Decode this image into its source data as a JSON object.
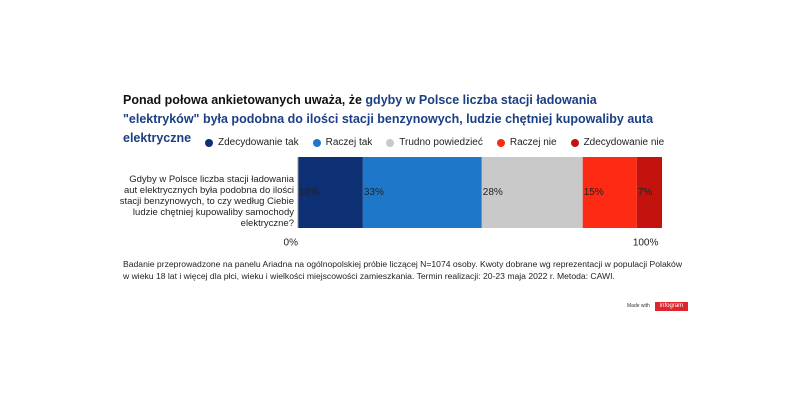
{
  "chart_data": {
    "type": "stacked_bar_horizontal",
    "title": "Ponad połowa ankietowanych uważa, że ",
    "title_highlight": "gdyby w Polsce liczba stacji ładowania \"elektryków\" była podobna do ilości stacji benzynowych, ludzie chętniej kupowaliby auta elektryczne",
    "categories": [
      "Gdyby w Polsce liczba stacji ładowania aut elektrycznych była podobna do ilości stacji benzynowych, to czy według Ciebie ludzie chętniej kupowaliby samochody elektryczne?"
    ],
    "series": [
      {
        "name": "Zdecydowanie tak",
        "color": "#0d2f74",
        "values": [
          18
        ],
        "value_labels": [
          "18%"
        ]
      },
      {
        "name": "Raczej tak",
        "color": "#1f77c9",
        "values": [
          33
        ],
        "value_labels": [
          "33%"
        ]
      },
      {
        "name": "Trudno powiedzieć",
        "color": "#c9c9c9",
        "values": [
          28
        ],
        "value_labels": [
          "28%"
        ]
      },
      {
        "name": "Raczej nie",
        "color": "#fd2b13",
        "values": [
          15
        ],
        "value_labels": [
          "15%"
        ]
      },
      {
        "name": "Zdecydowanie nie",
        "color": "#c4130f",
        "values": [
          7
        ],
        "value_labels": [
          "7%"
        ]
      }
    ],
    "xlim": [
      0,
      101
    ],
    "xticks": [
      {
        "value": 0,
        "label": "0%"
      },
      {
        "value": 100,
        "label": "100%"
      }
    ],
    "legend": "top",
    "footnote": "Badanie przeprowadzone na panelu Ariadna na ogólnopolskiej próbie liczącej N=1074 osoby. Kwoty dobrane wg reprezentacji w populacji Polaków w wieku 18 lat i więcej dla płci, wieku i wielkości miejscowości zamieszkania. Termin realizacji:  20-23 maja  2022 r. Metoda: CAWI.",
    "branding": {
      "made_with": "Made with",
      "logo": "infogram"
    }
  }
}
